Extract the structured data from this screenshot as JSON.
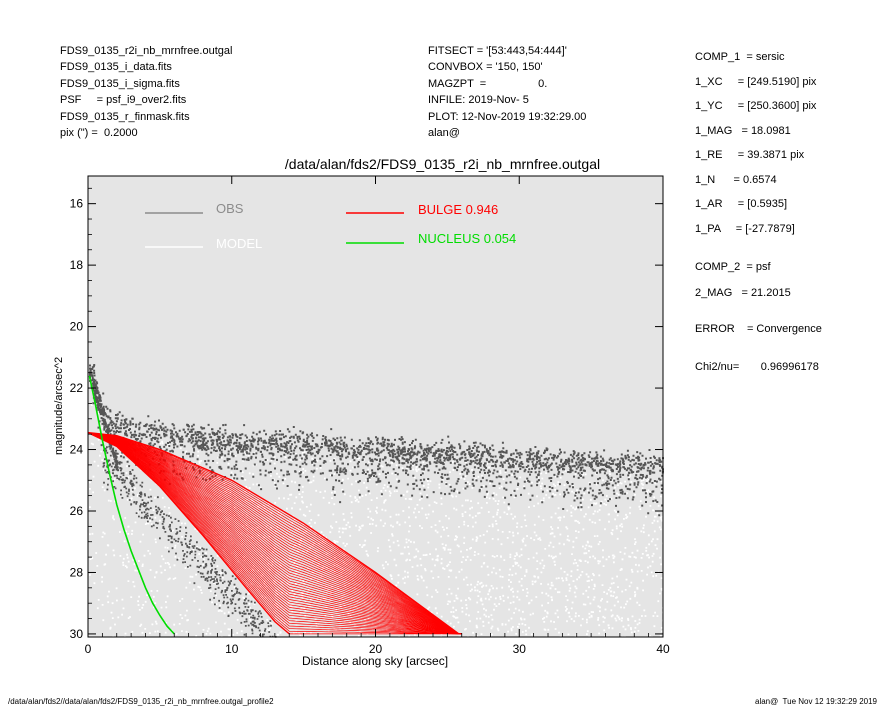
{
  "header_left": [
    "FDS9_0135_r2i_nb_mrnfree.outgal",
    "FDS9_0135_i_data.fits",
    "FDS9_0135_i_sigma.fits",
    "PSF     = psf_i9_over2.fits",
    "FDS9_0135_r_finmask.fits",
    "pix (\") =  0.2000"
  ],
  "header_mid": [
    "FITSECT = '[53:443,54:444]'",
    "CONVBOX = '150, 150'",
    "MAGZPT  =                 0.",
    "INFILE: 2019-Nov- 5",
    "PLOT: 12-Nov-2019 19:32:29.00",
    "alan@"
  ],
  "params": [
    "COMP_1  = sersic",
    "1_XC     = [249.5190] pix",
    "1_YC     = [250.3600] pix",
    "1_MAG   = 18.0981",
    "1_RE     = 39.3871 pix",
    "1_N      = 0.6574",
    "1_AR     = [0.5935]",
    "1_PA     = [-27.7879]",
    "COMP_2  = psf",
    "2_MAG   = 21.2015",
    "ERROR    = Convergence",
    "Chi2/nu=       0.96996178"
  ],
  "plot_title": "/data/alan/fds2/FDS9_0135_r2i_nb_mrnfree.outgal",
  "footer_left": "/data/alan/fds2//data/alan/fds2/FDS9_0135_r2i_nb_mrnfree.outgal_profile2",
  "footer_right": "alan@  Tue Nov 12 19:32:29 2019",
  "legend": {
    "obs": "OBS",
    "model": "MODEL",
    "bulge": "BULGE  0.946",
    "nucleus": "NUCLEUS  0.054"
  },
  "colors": {
    "background": "#e5e5e5",
    "obs": "#8c8c8c",
    "obs_points": "#555555",
    "model": "#ffffff",
    "bulge": "#ff0000",
    "nucleus": "#00dd00"
  },
  "chart_data": {
    "type": "scatter",
    "title": "/data/alan/fds2/FDS9_0135_r2i_nb_mrnfree.outgal",
    "xlabel": "Distance along sky [arcsec]",
    "ylabel": "magnitude/arcsec^2",
    "xlim": [
      0,
      40
    ],
    "ylim": [
      30,
      15
    ],
    "x_ticks": [
      0,
      10,
      20,
      30,
      40
    ],
    "y_ticks": [
      16,
      18,
      20,
      22,
      24,
      26,
      28,
      30
    ],
    "grid": false,
    "legend_position": "top",
    "series": [
      {
        "name": "OBS",
        "style": "points",
        "color": "#555555",
        "description_points": [
          [
            0.2,
            21.4
          ],
          [
            0.8,
            22.5
          ],
          [
            1.5,
            23.1
          ],
          [
            3,
            23.4
          ],
          [
            6,
            23.55
          ],
          [
            10,
            23.7
          ],
          [
            15,
            23.85
          ],
          [
            20,
            24.0
          ],
          [
            25,
            24.15
          ],
          [
            30,
            24.3
          ],
          [
            35,
            24.45
          ],
          [
            40,
            24.55
          ]
        ]
      },
      {
        "name": "MODEL",
        "style": "points",
        "color": "#ffffff",
        "description_points": [
          [
            0.5,
            23.5
          ],
          [
            5,
            25.5
          ],
          [
            10,
            27.0
          ],
          [
            15,
            28.5
          ],
          [
            20,
            29.5
          ],
          [
            25,
            30.0
          ]
        ]
      },
      {
        "name": "BULGE  0.946",
        "style": "band",
        "color": "#ff0000",
        "upper_edge": [
          [
            0,
            23.45
          ],
          [
            2,
            23.55
          ],
          [
            5,
            24.0
          ],
          [
            10,
            25.0
          ],
          [
            15,
            26.4
          ],
          [
            20,
            28.0
          ],
          [
            25.8,
            30.0
          ]
        ],
        "lower_edge": [
          [
            0,
            23.45
          ],
          [
            2,
            23.9
          ],
          [
            5,
            25.2
          ],
          [
            8,
            26.8
          ],
          [
            11,
            28.5
          ],
          [
            13,
            29.6
          ],
          [
            14,
            30.0
          ]
        ]
      },
      {
        "name": "NUCLEUS  0.054",
        "style": "line",
        "color": "#00dd00",
        "points": [
          [
            0.1,
            21.6
          ],
          [
            0.5,
            22.5
          ],
          [
            1.0,
            23.7
          ],
          [
            1.5,
            24.8
          ],
          [
            2.0,
            25.8
          ],
          [
            2.5,
            26.6
          ],
          [
            3.0,
            27.3
          ],
          [
            3.5,
            27.9
          ],
          [
            4.0,
            28.5
          ],
          [
            4.5,
            29.0
          ],
          [
            5.0,
            29.4
          ],
          [
            5.5,
            29.75
          ],
          [
            6.0,
            30.0
          ]
        ]
      }
    ]
  }
}
